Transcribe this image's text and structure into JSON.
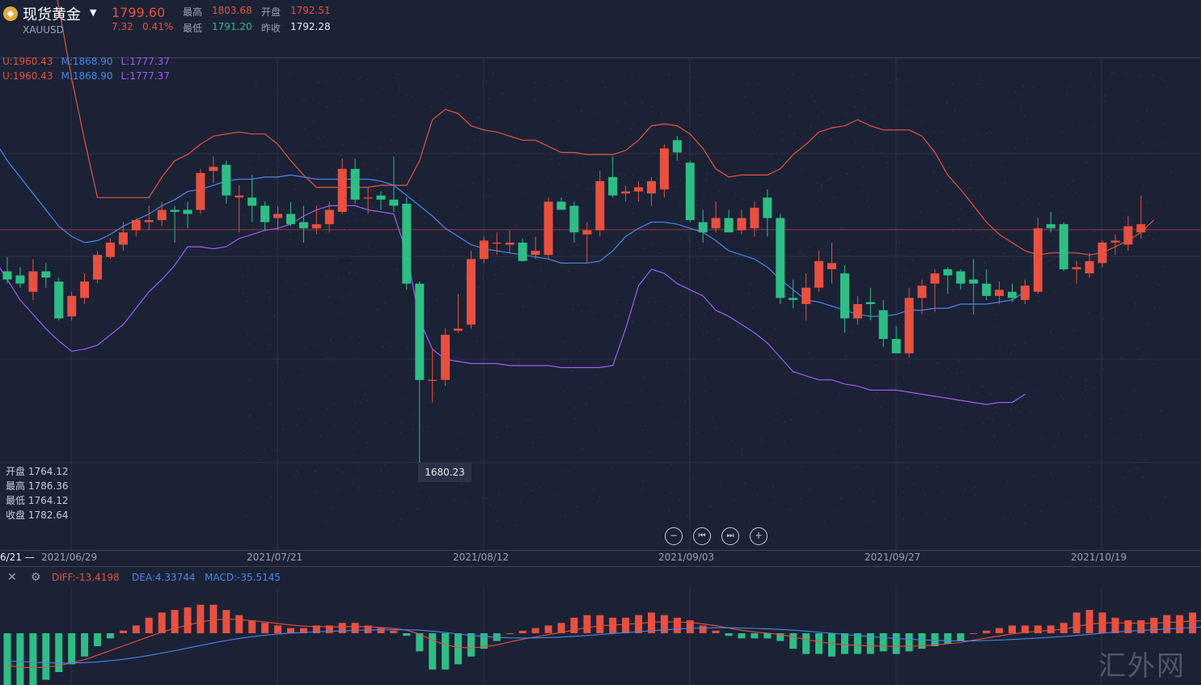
{
  "header": {
    "title": "现货黄金",
    "symbol": "XAUUSD",
    "price": "1799.60",
    "change": "7.32",
    "change_pct": "0.41%",
    "high_label": "最高",
    "high": "1803.68",
    "open_label": "开盘",
    "open": "1792.51",
    "low_label": "最低",
    "low": "1791.20",
    "prev_close_label": "昨收",
    "prev_close": "1792.28"
  },
  "boll": {
    "upper": "U:1960.43",
    "middle": "M:1868.90",
    "lower": "L:1777.37"
  },
  "ohlc_panel": [
    {
      "label": "开盘",
      "value": "1764.12"
    },
    {
      "label": "最高",
      "value": "1786.36"
    },
    {
      "label": "最低",
      "value": "1764.12"
    },
    {
      "label": "收盘",
      "value": "1782.64"
    }
  ],
  "tooltip_low": "1680.23",
  "controls": {
    "zoom_out": "−",
    "start": "⏮",
    "end": "⏭",
    "zoom_in": "+"
  },
  "dates": [
    "2021/06/29",
    "2021/07/21",
    "2021/08/12",
    "2021/09/03",
    "2021/09/27",
    "2021/10/19"
  ],
  "cursor_date": "6/21",
  "cursor_dash": "—",
  "macd": {
    "diff": "DIFF:-13.4198",
    "dea": "DEA:4.33744",
    "macd": "MACD:-35.5145"
  },
  "watermark": "汇外网",
  "colors": {
    "up": "#e8503f",
    "down": "#2ebd85",
    "upper_band": "#e8503f",
    "middle_band": "#4a86e8",
    "lower_band": "#9b5cf6",
    "background": "#1b2236"
  },
  "chart_data": {
    "type": "candlestick",
    "candles": [
      {
        "o": 1776,
        "h": 1783,
        "l": 1770,
        "c": 1772
      },
      {
        "o": 1774,
        "h": 1778,
        "l": 1768,
        "c": 1770
      },
      {
        "o": 1766,
        "h": 1782,
        "l": 1762,
        "c": 1776
      },
      {
        "o": 1776,
        "h": 1780,
        "l": 1768,
        "c": 1773
      },
      {
        "o": 1771,
        "h": 1773,
        "l": 1752,
        "c": 1753
      },
      {
        "o": 1754,
        "h": 1766,
        "l": 1752,
        "c": 1764
      },
      {
        "o": 1763,
        "h": 1775,
        "l": 1760,
        "c": 1771
      },
      {
        "o": 1772,
        "h": 1786,
        "l": 1770,
        "c": 1784
      },
      {
        "o": 1783,
        "h": 1792,
        "l": 1782,
        "c": 1790
      },
      {
        "o": 1789,
        "h": 1800,
        "l": 1786,
        "c": 1795
      },
      {
        "o": 1796,
        "h": 1802,
        "l": 1793,
        "c": 1801
      },
      {
        "o": 1800,
        "h": 1808,
        "l": 1796,
        "c": 1801
      },
      {
        "o": 1801,
        "h": 1810,
        "l": 1798,
        "c": 1806
      },
      {
        "o": 1806,
        "h": 1808,
        "l": 1790,
        "c": 1805
      },
      {
        "o": 1806,
        "h": 1810,
        "l": 1797,
        "c": 1804
      },
      {
        "o": 1806,
        "h": 1826,
        "l": 1804,
        "c": 1824
      },
      {
        "o": 1825,
        "h": 1832,
        "l": 1819,
        "c": 1827
      },
      {
        "o": 1828,
        "h": 1830,
        "l": 1809,
        "c": 1813
      },
      {
        "o": 1812,
        "h": 1818,
        "l": 1795,
        "c": 1813
      },
      {
        "o": 1812,
        "h": 1823,
        "l": 1800,
        "c": 1808
      },
      {
        "o": 1808,
        "h": 1810,
        "l": 1796,
        "c": 1800
      },
      {
        "o": 1802,
        "h": 1808,
        "l": 1796,
        "c": 1804
      },
      {
        "o": 1804,
        "h": 1810,
        "l": 1798,
        "c": 1799
      },
      {
        "o": 1800,
        "h": 1808,
        "l": 1790,
        "c": 1797
      },
      {
        "o": 1797,
        "h": 1808,
        "l": 1794,
        "c": 1799
      },
      {
        "o": 1799,
        "h": 1810,
        "l": 1795,
        "c": 1806
      },
      {
        "o": 1805,
        "h": 1831,
        "l": 1804,
        "c": 1826
      },
      {
        "o": 1826,
        "h": 1831,
        "l": 1809,
        "c": 1811
      },
      {
        "o": 1812,
        "h": 1817,
        "l": 1804,
        "c": 1812
      },
      {
        "o": 1813,
        "h": 1815,
        "l": 1806,
        "c": 1811
      },
      {
        "o": 1811,
        "h": 1832,
        "l": 1805,
        "c": 1808
      },
      {
        "o": 1809,
        "h": 1812,
        "l": 1767,
        "c": 1770
      },
      {
        "o": 1770,
        "h": 1771,
        "l": 1680,
        "c": 1723
      },
      {
        "o": 1723,
        "h": 1738,
        "l": 1712,
        "c": 1723
      },
      {
        "o": 1723,
        "h": 1748,
        "l": 1720,
        "c": 1745
      },
      {
        "o": 1747,
        "h": 1765,
        "l": 1746,
        "c": 1748
      },
      {
        "o": 1750,
        "h": 1786,
        "l": 1748,
        "c": 1782
      },
      {
        "o": 1782,
        "h": 1793,
        "l": 1780,
        "c": 1791
      },
      {
        "o": 1790,
        "h": 1795,
        "l": 1784,
        "c": 1790
      },
      {
        "o": 1789,
        "h": 1796,
        "l": 1785,
        "c": 1790
      },
      {
        "o": 1790,
        "h": 1792,
        "l": 1781,
        "c": 1781
      },
      {
        "o": 1784,
        "h": 1793,
        "l": 1782,
        "c": 1786
      },
      {
        "o": 1784,
        "h": 1812,
        "l": 1782,
        "c": 1810
      },
      {
        "o": 1810,
        "h": 1812,
        "l": 1806,
        "c": 1806
      },
      {
        "o": 1808,
        "h": 1810,
        "l": 1790,
        "c": 1795
      },
      {
        "o": 1794,
        "h": 1800,
        "l": 1780,
        "c": 1796
      },
      {
        "o": 1796,
        "h": 1825,
        "l": 1793,
        "c": 1820
      },
      {
        "o": 1822,
        "h": 1832,
        "l": 1812,
        "c": 1813
      },
      {
        "o": 1814,
        "h": 1818,
        "l": 1810,
        "c": 1815
      },
      {
        "o": 1815,
        "h": 1820,
        "l": 1810,
        "c": 1817
      },
      {
        "o": 1814,
        "h": 1822,
        "l": 1808,
        "c": 1820
      },
      {
        "o": 1816,
        "h": 1838,
        "l": 1812,
        "c": 1836
      },
      {
        "o": 1840,
        "h": 1842,
        "l": 1830,
        "c": 1834
      },
      {
        "o": 1829,
        "h": 1830,
        "l": 1800,
        "c": 1801
      },
      {
        "o": 1800,
        "h": 1806,
        "l": 1790,
        "c": 1795
      },
      {
        "o": 1797,
        "h": 1810,
        "l": 1795,
        "c": 1802
      },
      {
        "o": 1802,
        "h": 1806,
        "l": 1795,
        "c": 1795
      },
      {
        "o": 1796,
        "h": 1806,
        "l": 1794,
        "c": 1802
      },
      {
        "o": 1797,
        "h": 1810,
        "l": 1793,
        "c": 1807
      },
      {
        "o": 1812,
        "h": 1816,
        "l": 1793,
        "c": 1802
      },
      {
        "o": 1802,
        "h": 1804,
        "l": 1760,
        "c": 1763
      },
      {
        "o": 1763,
        "h": 1772,
        "l": 1758,
        "c": 1762
      },
      {
        "o": 1760,
        "h": 1775,
        "l": 1752,
        "c": 1768
      },
      {
        "o": 1768,
        "h": 1786,
        "l": 1766,
        "c": 1781
      },
      {
        "o": 1777,
        "h": 1790,
        "l": 1770,
        "c": 1780
      },
      {
        "o": 1775,
        "h": 1779,
        "l": 1746,
        "c": 1753
      },
      {
        "o": 1753,
        "h": 1764,
        "l": 1750,
        "c": 1760
      },
      {
        "o": 1761,
        "h": 1768,
        "l": 1752,
        "c": 1760
      },
      {
        "o": 1757,
        "h": 1762,
        "l": 1739,
        "c": 1743
      },
      {
        "o": 1743,
        "h": 1749,
        "l": 1737,
        "c": 1736
      },
      {
        "o": 1736,
        "h": 1768,
        "l": 1734,
        "c": 1763
      },
      {
        "o": 1763,
        "h": 1772,
        "l": 1755,
        "c": 1769
      },
      {
        "o": 1770,
        "h": 1777,
        "l": 1756,
        "c": 1775
      },
      {
        "o": 1777,
        "h": 1778,
        "l": 1765,
        "c": 1774
      },
      {
        "o": 1776,
        "h": 1777,
        "l": 1767,
        "c": 1770
      },
      {
        "o": 1772,
        "h": 1782,
        "l": 1755,
        "c": 1770
      },
      {
        "o": 1770,
        "h": 1777,
        "l": 1762,
        "c": 1764
      },
      {
        "o": 1764,
        "h": 1771,
        "l": 1760,
        "c": 1767
      },
      {
        "o": 1766,
        "h": 1770,
        "l": 1761,
        "c": 1763
      },
      {
        "o": 1762,
        "h": 1772,
        "l": 1760,
        "c": 1769
      },
      {
        "o": 1766,
        "h": 1802,
        "l": 1765,
        "c": 1797
      },
      {
        "o": 1799,
        "h": 1805,
        "l": 1795,
        "c": 1797
      },
      {
        "o": 1799,
        "h": 1800,
        "l": 1776,
        "c": 1777
      },
      {
        "o": 1777,
        "h": 1781,
        "l": 1770,
        "c": 1778
      },
      {
        "o": 1775,
        "h": 1785,
        "l": 1773,
        "c": 1781
      },
      {
        "o": 1780,
        "h": 1791,
        "l": 1778,
        "c": 1790
      },
      {
        "o": 1790,
        "h": 1794,
        "l": 1784,
        "c": 1791
      },
      {
        "o": 1789,
        "h": 1803,
        "l": 1786,
        "c": 1798
      },
      {
        "o": 1795,
        "h": 1813,
        "l": 1792,
        "c": 1799
      }
    ],
    "upper_band": [
      2010,
      1985,
      1960,
      1935,
      1905,
      1870,
      1840,
      1812,
      1812,
      1812,
      1812,
      1812,
      1822,
      1830,
      1833,
      1838,
      1842,
      1843,
      1844,
      1843,
      1843,
      1838,
      1830,
      1823,
      1817,
      1817,
      1817,
      1817,
      1817,
      1818,
      1818,
      1818,
      1830,
      1850,
      1855,
      1853,
      1847,
      1845,
      1844,
      1842,
      1840,
      1840,
      1837,
      1834,
      1834,
      1833,
      1833,
      1833,
      1835,
      1840,
      1847,
      1848,
      1847,
      1843,
      1836,
      1826,
      1822,
      1823,
      1823,
      1823,
      1826,
      1833,
      1838,
      1844,
      1846,
      1847,
      1850,
      1847,
      1845,
      1845,
      1845,
      1842,
      1834,
      1823,
      1816,
      1808,
      1800,
      1794,
      1790,
      1786,
      1784,
      1785,
      1785,
      1785,
      1784,
      1785,
      1788,
      1791,
      1795,
      1801
    ],
    "middle_band": [
      1840,
      1830,
      1822,
      1814,
      1806,
      1798,
      1793,
      1790,
      1791,
      1794,
      1798,
      1801,
      1804,
      1808,
      1811,
      1815,
      1816,
      1818,
      1820,
      1821,
      1821,
      1822,
      1822,
      1823,
      1822,
      1821,
      1821,
      1821,
      1821,
      1821,
      1820,
      1818,
      1813,
      1808,
      1803,
      1797,
      1793,
      1789,
      1787,
      1786,
      1785,
      1784,
      1783,
      1782,
      1780,
      1780,
      1780,
      1781,
      1786,
      1793,
      1797,
      1800,
      1800,
      1799,
      1797,
      1795,
      1791,
      1786,
      1784,
      1782,
      1778,
      1772,
      1767,
      1762,
      1761,
      1759,
      1757,
      1755,
      1754,
      1754,
      1755,
      1757,
      1757,
      1758,
      1758,
      1760,
      1760,
      1760,
      1761,
      1762,
      1766
    ],
    "lower_band": [
      1782,
      1772,
      1762,
      1755,
      1748,
      1742,
      1737,
      1738,
      1740,
      1745,
      1750,
      1758,
      1766,
      1772,
      1779,
      1788,
      1788,
      1787,
      1788,
      1792,
      1794,
      1796,
      1797,
      1799,
      1803,
      1806,
      1808,
      1808,
      1808,
      1806,
      1805,
      1804,
      1785,
      1752,
      1738,
      1733,
      1732,
      1731,
      1731,
      1731,
      1730,
      1730,
      1730,
      1730,
      1729,
      1729,
      1729,
      1729,
      1730,
      1748,
      1769,
      1777,
      1775,
      1770,
      1767,
      1764,
      1757,
      1754,
      1750,
      1746,
      1741,
      1734,
      1727,
      1725,
      1723,
      1723,
      1721,
      1720,
      1718,
      1718,
      1718,
      1717,
      1716,
      1715,
      1714,
      1713,
      1712,
      1711,
      1712,
      1712,
      1716
    ],
    "y_range": [
      1640,
      1880
    ],
    "macd_hist": [
      -22,
      -22,
      -20,
      -18,
      -15,
      -12,
      -9,
      -5,
      -2,
      1,
      3,
      6,
      8,
      9,
      10,
      11,
      11,
      9,
      7,
      5,
      4,
      3,
      2,
      2,
      3,
      3,
      4,
      4,
      3,
      2,
      1,
      -1,
      -7,
      -14,
      -14,
      -12,
      -9,
      -6,
      -3,
      0,
      1,
      2,
      3,
      4,
      6,
      7,
      7,
      6,
      6,
      7,
      8,
      7,
      6,
      5,
      3,
      1,
      -1,
      -2,
      -2,
      -2,
      -3,
      -6,
      -8,
      -8,
      -9,
      -8,
      -8,
      -8,
      -7,
      -8,
      -7,
      -6,
      -5,
      -4,
      -3,
      0,
      1,
      2,
      3,
      3,
      3,
      3,
      4,
      8,
      9,
      8,
      6,
      5,
      5,
      6,
      7,
      7,
      8,
      8,
      6,
      8,
      8,
      7,
      8
    ]
  }
}
